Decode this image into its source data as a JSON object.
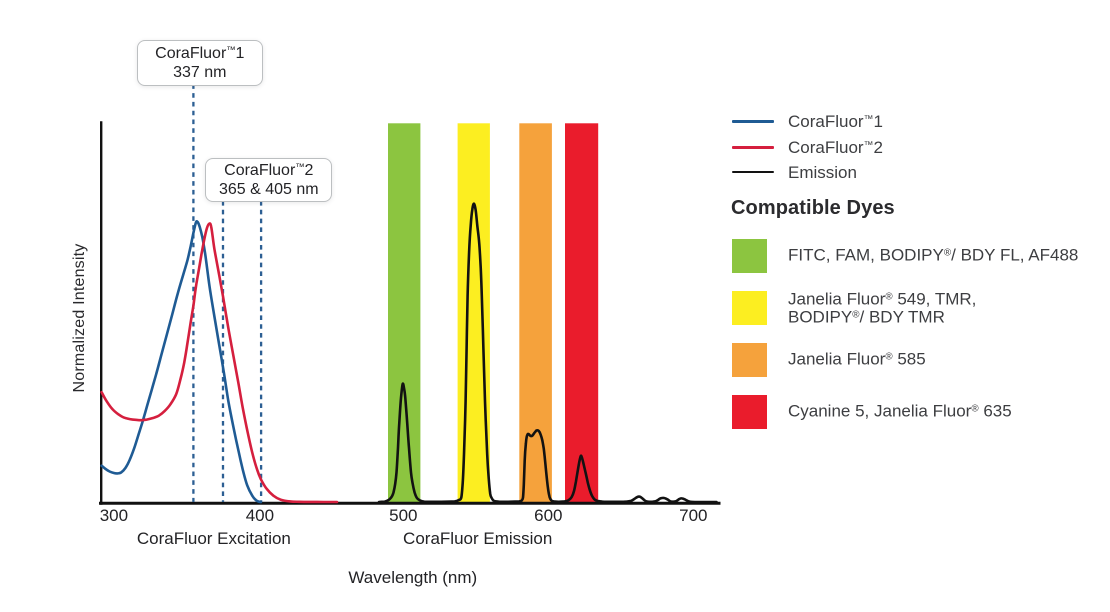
{
  "chart_data": {
    "type": "line",
    "title": "",
    "xlabel": "Wavelength (nm)",
    "ylabel": "Normalized Intensity",
    "x_ticks": [
      "300",
      "400",
      "500",
      "600",
      "700"
    ],
    "x_tick_values_nm": [
      300,
      400,
      500,
      600,
      700
    ],
    "x_range_nm": [
      289,
      718
    ],
    "y_range": [
      0,
      1
    ],
    "grid": false,
    "x_section_labels": [
      {
        "label": "CoraFluor Excitation",
        "center_nm": 369
      },
      {
        "label": "CoraFluor Emission",
        "center_nm": 551
      }
    ],
    "excitation_markers": [
      {
        "title": "CoraFluor™1",
        "subtitle": "337 nm",
        "dashed_lines_nm": [
          354.9
        ]
      },
      {
        "title": "CoraFluor™2",
        "subtitle": "365 & 405 nm",
        "dashed_lines_nm": [
          375.3,
          401.6
        ]
      }
    ],
    "marker_line_color": "#2c5f93",
    "dye_bands": [
      {
        "name": "FITC, FAM, BODIPY/ BDY FL, AF488",
        "nm": [
          489.2,
          511.6
        ],
        "color": "#8cc540"
      },
      {
        "name": "Janelia Fluor 549, TMR, BODIPY/ BDY TMR",
        "nm": [
          537.3,
          559.6
        ],
        "color": "#fcee21"
      },
      {
        "name": "Janelia Fluor 585",
        "nm": [
          579.9,
          602.4
        ],
        "color": "#f5a23c"
      },
      {
        "name": "Cyanine 5, Janelia Fluor 635",
        "nm": [
          611.4,
          634.3
        ],
        "color": "#ea1c2c"
      }
    ],
    "series": [
      {
        "name": "CoraFluor™1",
        "kind": "excitation",
        "color": "#1f5b94",
        "peak_nm": 356.5,
        "points": [
          [
            291.5,
            0.096
          ],
          [
            294,
            0.088
          ],
          [
            297,
            0.0805
          ],
          [
            300,
            0.0765
          ],
          [
            302.5,
            0.0755
          ],
          [
            305,
            0.078
          ],
          [
            308,
            0.09
          ],
          [
            311,
            0.112
          ],
          [
            314,
            0.142
          ],
          [
            317,
            0.178
          ],
          [
            320,
            0.215
          ],
          [
            323,
            0.255
          ],
          [
            326,
            0.295
          ],
          [
            329,
            0.335
          ],
          [
            332.5,
            0.385
          ],
          [
            336.5,
            0.442
          ],
          [
            340.3,
            0.496
          ],
          [
            344.1,
            0.551
          ],
          [
            348,
            0.602
          ],
          [
            350.8,
            0.639
          ],
          [
            353,
            0.676
          ],
          [
            355,
            0.713
          ],
          [
            356.7,
            0.739
          ],
          [
            357.9,
            0.739
          ],
          [
            359.2,
            0.727
          ],
          [
            361,
            0.7
          ],
          [
            363,
            0.655
          ],
          [
            366,
            0.57
          ],
          [
            369.4,
            0.49
          ],
          [
            372.7,
            0.415
          ],
          [
            376,
            0.34
          ],
          [
            379,
            0.267
          ],
          [
            382.5,
            0.198
          ],
          [
            386,
            0.135
          ],
          [
            389,
            0.085
          ],
          [
            392,
            0.044
          ],
          [
            395.6,
            0.016
          ],
          [
            398,
            0.005
          ],
          [
            400,
            0.001
          ],
          [
            401.5,
            0
          ]
        ]
      },
      {
        "name": "CoraFluor™2",
        "kind": "excitation",
        "color": "#d51f3e",
        "peak_nm": 365.5,
        "points": [
          [
            291.5,
            0.29
          ],
          [
            295,
            0.266
          ],
          [
            299,
            0.245
          ],
          [
            303,
            0.232
          ],
          [
            307,
            0.223
          ],
          [
            311,
            0.219
          ],
          [
            315,
            0.217
          ],
          [
            319,
            0.216
          ],
          [
            323,
            0.218
          ],
          [
            327,
            0.222
          ],
          [
            331,
            0.228
          ],
          [
            335,
            0.24
          ],
          [
            339,
            0.258
          ],
          [
            343,
            0.285
          ],
          [
            346,
            0.325
          ],
          [
            348.5,
            0.368
          ],
          [
            350.5,
            0.412
          ],
          [
            353,
            0.475
          ],
          [
            355,
            0.522
          ],
          [
            356.6,
            0.568
          ],
          [
            358.5,
            0.61
          ],
          [
            360.5,
            0.655
          ],
          [
            362.5,
            0.695
          ],
          [
            364.3,
            0.724
          ],
          [
            365.8,
            0.735
          ],
          [
            367.2,
            0.727
          ],
          [
            369.4,
            0.668
          ],
          [
            372.7,
            0.599
          ],
          [
            375.3,
            0.543
          ],
          [
            379.2,
            0.455
          ],
          [
            382.5,
            0.386
          ],
          [
            385.8,
            0.317
          ],
          [
            389,
            0.248
          ],
          [
            392.3,
            0.185
          ],
          [
            395.6,
            0.129
          ],
          [
            398.9,
            0.085
          ],
          [
            401.5,
            0.06
          ],
          [
            405.4,
            0.035
          ],
          [
            410.3,
            0.016
          ],
          [
            415.2,
            0.006
          ],
          [
            421.8,
            0.0015
          ],
          [
            428,
            0.0006
          ],
          [
            436,
            0.0002
          ],
          [
            445,
            0.0001
          ],
          [
            454,
            0
          ]
        ]
      },
      {
        "name": "Emission",
        "kind": "emission",
        "color": "#121212",
        "peak_nm_list": [
          499.4,
          548.5,
          591,
          622.4,
          662,
          679,
          692
        ],
        "points": [
          [
            483,
            0
          ],
          [
            485,
            0.0005
          ],
          [
            487,
            0.001
          ],
          [
            489,
            0.004
          ],
          [
            490.5,
            0.008
          ],
          [
            492,
            0.015
          ],
          [
            493,
            0.025
          ],
          [
            494.2,
            0.048
          ],
          [
            495.1,
            0.078
          ],
          [
            496.1,
            0.143
          ],
          [
            497,
            0.209
          ],
          [
            498.2,
            0.275
          ],
          [
            499.4,
            0.312
          ],
          [
            500.4,
            0.298
          ],
          [
            501.2,
            0.275
          ],
          [
            502.5,
            0.209
          ],
          [
            503.7,
            0.143
          ],
          [
            505.1,
            0.078
          ],
          [
            506.3,
            0.048
          ],
          [
            507.6,
            0.025
          ],
          [
            509,
            0.012
          ],
          [
            510.5,
            0.006
          ],
          [
            512,
            0.003
          ],
          [
            514,
            0.001
          ],
          [
            518,
            0.0005
          ],
          [
            526,
            0.0005
          ],
          [
            533,
            0.001
          ],
          [
            536,
            0.002
          ],
          [
            538,
            0.005
          ],
          [
            539.8,
            0.012
          ],
          [
            540.8,
            0.05
          ],
          [
            541.7,
            0.126
          ],
          [
            542.8,
            0.266
          ],
          [
            543.5,
            0.405
          ],
          [
            544.2,
            0.544
          ],
          [
            545.2,
            0.66
          ],
          [
            546.3,
            0.73
          ],
          [
            547.4,
            0.772
          ],
          [
            548.5,
            0.788
          ],
          [
            549.7,
            0.772
          ],
          [
            550.9,
            0.73
          ],
          [
            552.2,
            0.684
          ],
          [
            553.2,
            0.62
          ],
          [
            554,
            0.544
          ],
          [
            555.1,
            0.405
          ],
          [
            556.2,
            0.266
          ],
          [
            557.7,
            0.126
          ],
          [
            558.8,
            0.06
          ],
          [
            559.8,
            0.022
          ],
          [
            560.6,
            0.012
          ],
          [
            562,
            0.004
          ],
          [
            564,
            0.0015
          ],
          [
            567,
            0.0005
          ],
          [
            572,
            0.0005
          ],
          [
            577,
            0.001
          ],
          [
            580,
            0.0015
          ],
          [
            581.5,
            0.004
          ],
          [
            582.4,
            0.012
          ],
          [
            583,
            0.045
          ],
          [
            583.6,
            0.11
          ],
          [
            584.4,
            0.155
          ],
          [
            585,
            0.172
          ],
          [
            585.7,
            0.179
          ],
          [
            586.4,
            0.179
          ],
          [
            587.2,
            0.176
          ],
          [
            588,
            0.174
          ],
          [
            588.8,
            0.175
          ],
          [
            589.8,
            0.18
          ],
          [
            590.8,
            0.185
          ],
          [
            591.8,
            0.189
          ],
          [
            592.8,
            0.189
          ],
          [
            593.8,
            0.185
          ],
          [
            594.8,
            0.176
          ],
          [
            595.8,
            0.162
          ],
          [
            596.7,
            0.142
          ],
          [
            597.4,
            0.119
          ],
          [
            598.2,
            0.089
          ],
          [
            599,
            0.058
          ],
          [
            599.9,
            0.03
          ],
          [
            600.8,
            0.013
          ],
          [
            601.8,
            0.005
          ],
          [
            603,
            0.002
          ],
          [
            604.5,
            0.001
          ],
          [
            607,
            0.0005
          ],
          [
            610,
            0.001
          ],
          [
            612,
            0.002
          ],
          [
            614,
            0.005
          ],
          [
            616,
            0.013
          ],
          [
            617.6,
            0.028
          ],
          [
            619,
            0.055
          ],
          [
            620.3,
            0.085
          ],
          [
            621.5,
            0.11
          ],
          [
            622.4,
            0.122
          ],
          [
            623.3,
            0.115
          ],
          [
            624.4,
            0.098
          ],
          [
            625.8,
            0.075
          ],
          [
            627.2,
            0.051
          ],
          [
            628.6,
            0.031
          ],
          [
            630,
            0.017
          ],
          [
            631.5,
            0.008
          ],
          [
            633,
            0.004
          ],
          [
            635,
            0.002
          ],
          [
            637,
            0.001
          ],
          [
            640,
            0.0005
          ],
          [
            645,
            0.0005
          ],
          [
            650,
            0.0005
          ],
          [
            653,
            0.0008
          ],
          [
            655,
            0.0015
          ],
          [
            657,
            0.003
          ],
          [
            658.5,
            0.006
          ],
          [
            660,
            0.01
          ],
          [
            661.5,
            0.0135
          ],
          [
            662.5,
            0.0143
          ],
          [
            663.5,
            0.0135
          ],
          [
            665,
            0.009
          ],
          [
            666.5,
            0.004
          ],
          [
            668,
            0.0012
          ],
          [
            669.5,
            0.0005
          ],
          [
            671,
            0.0005
          ],
          [
            672.5,
            0.001
          ],
          [
            674,
            0.002
          ],
          [
            675.5,
            0.005
          ],
          [
            677,
            0.009
          ],
          [
            678.5,
            0.0105
          ],
          [
            679.8,
            0.0105
          ],
          [
            681,
            0.009
          ],
          [
            682.5,
            0.006
          ],
          [
            684,
            0.002
          ],
          [
            685.5,
            0.0008
          ],
          [
            687,
            0.0012
          ],
          [
            688.5,
            0.003
          ],
          [
            690,
            0.007
          ],
          [
            691.5,
            0.0095
          ],
          [
            692.8,
            0.009
          ],
          [
            694,
            0.007
          ],
          [
            695.5,
            0.004
          ],
          [
            697,
            0.0015
          ],
          [
            698.5,
            0.0005
          ],
          [
            701,
            0
          ],
          [
            716,
            0
          ]
        ]
      }
    ]
  },
  "legend": {
    "series": [
      {
        "label": "CoraFluor™1",
        "color": "#1f5b94"
      },
      {
        "label": "CoraFluor™2",
        "color": "#d51f3e"
      },
      {
        "label": "Emission",
        "color": "#121212"
      }
    ],
    "dyes_title": "Compatible Dyes",
    "dyes": [
      {
        "color": "#8cc540",
        "lines": [
          "FITC, FAM, BODIPY®/ BDY FL, AF488"
        ]
      },
      {
        "color": "#fcee21",
        "lines": [
          "Janelia Fluor® 549, TMR,",
          "BODIPY®/ BDY TMR"
        ]
      },
      {
        "color": "#f5a23c",
        "lines": [
          "Janelia Fluor® 585"
        ]
      },
      {
        "color": "#ea1c2c",
        "lines": [
          "Cyanine 5, Janelia Fluor® 635"
        ]
      }
    ]
  }
}
